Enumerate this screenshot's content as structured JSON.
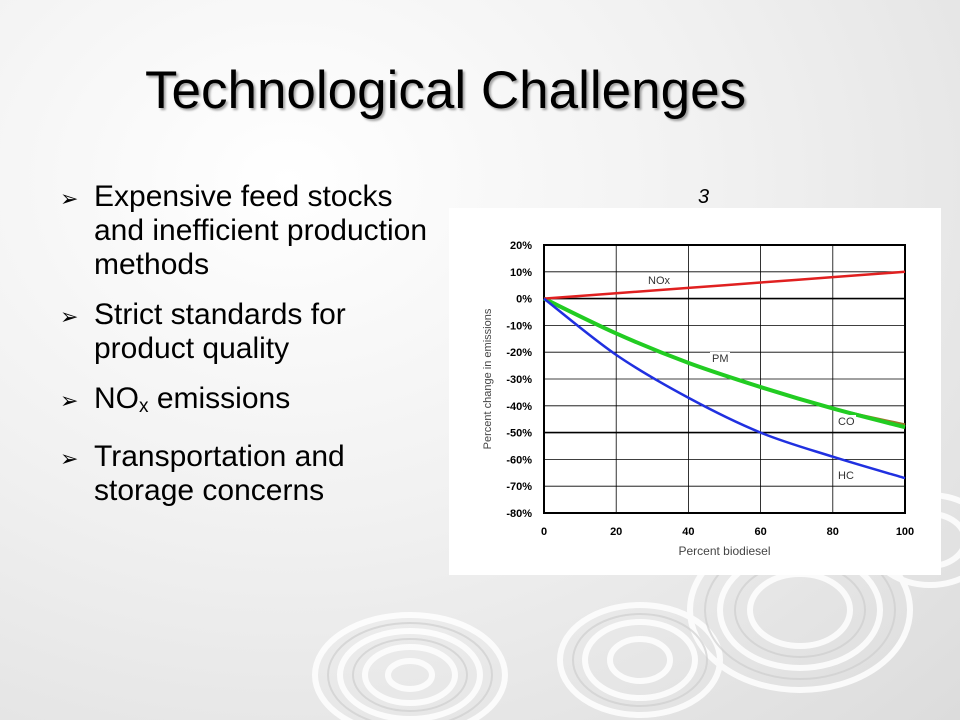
{
  "slide": {
    "title": "Technological Challenges",
    "reference_number": "3"
  },
  "bullets": [
    {
      "text": "Expensive feed stocks and inefficient production methods"
    },
    {
      "text": "Strict standards for product quality"
    },
    {
      "text_main": "NO",
      "text_sub": "x",
      "text_rest": " emissions"
    },
    {
      "text": "Transportation and storage concerns"
    }
  ],
  "chart_data": {
    "type": "line",
    "xlabel": "Percent biodiesel",
    "ylabel": "Percent change in emissions",
    "xlim": [
      0,
      100
    ],
    "ylim": [
      -80,
      20
    ],
    "x_ticks": [
      "0",
      "20",
      "40",
      "60",
      "80",
      "100"
    ],
    "y_ticks": [
      "20%",
      "10%",
      "0%",
      "-10%",
      "-20%",
      "-30%",
      "-40%",
      "-50%",
      "-60%",
      "-70%",
      "-80%"
    ],
    "grid": true,
    "x": [
      0,
      20,
      40,
      60,
      80,
      100
    ],
    "series": [
      {
        "name": "NOx",
        "color": "#e02020",
        "values": [
          0,
          2,
          4,
          6,
          8,
          10
        ]
      },
      {
        "name": "PM",
        "color": "#22cc22",
        "values": [
          0,
          -13,
          -24,
          -33,
          -41,
          -48
        ]
      },
      {
        "name": "CO",
        "color": "#9a7a2a",
        "values": [
          0,
          -13,
          -24,
          -33,
          -41,
          -47
        ]
      },
      {
        "name": "HC",
        "color": "#2030e0",
        "values": [
          0,
          -21,
          -37,
          -50,
          -59,
          -67
        ]
      }
    ]
  }
}
